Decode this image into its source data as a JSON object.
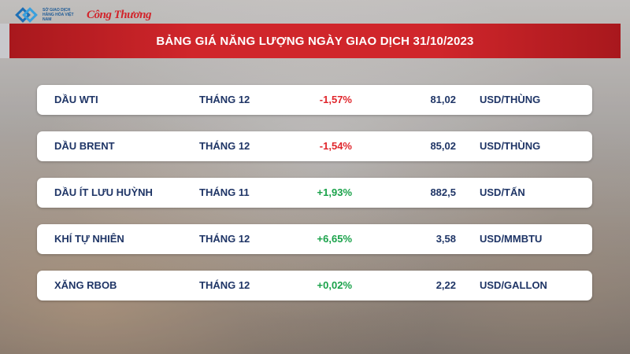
{
  "header": {
    "title": "BẢNG GIÁ NĂNG LƯỢNG NGÀY GIAO DỊCH 31/10/2023"
  },
  "logos": {
    "exchange_text": "SỞ GIAO DỊCH HÀNG HÓA VIỆT NAM",
    "newspaper": "Công Thương"
  },
  "colors": {
    "header_red": "#d0262b",
    "negative": "#e0262c",
    "positive": "#1aa24a",
    "text_navy": "#1f3566"
  },
  "rows": [
    {
      "name": "DẦU WTI",
      "month": "THÁNG 12",
      "change": "-1,57%",
      "trend": "negative",
      "price": "81,02",
      "unit": "USD/THÙNG"
    },
    {
      "name": "DẦU BRENT",
      "month": "THÁNG 12",
      "change": "-1,54%",
      "trend": "negative",
      "price": "85,02",
      "unit": "USD/THÙNG"
    },
    {
      "name": "DẦU ÍT LƯU HUỲNH",
      "month": "THÁNG 11",
      "change": "+1,93%",
      "trend": "positive",
      "price": "882,5",
      "unit": "USD/TẤN"
    },
    {
      "name": "KHÍ TỰ NHIÊN",
      "month": "THÁNG 12",
      "change": "+6,65%",
      "trend": "positive",
      "price": "3,58",
      "unit": "USD/MMBTU"
    },
    {
      "name": "XĂNG RBOB",
      "month": "THÁNG 12",
      "change": "+0,02%",
      "trend": "positive",
      "price": "2,22",
      "unit": "USD/GALLON"
    }
  ]
}
